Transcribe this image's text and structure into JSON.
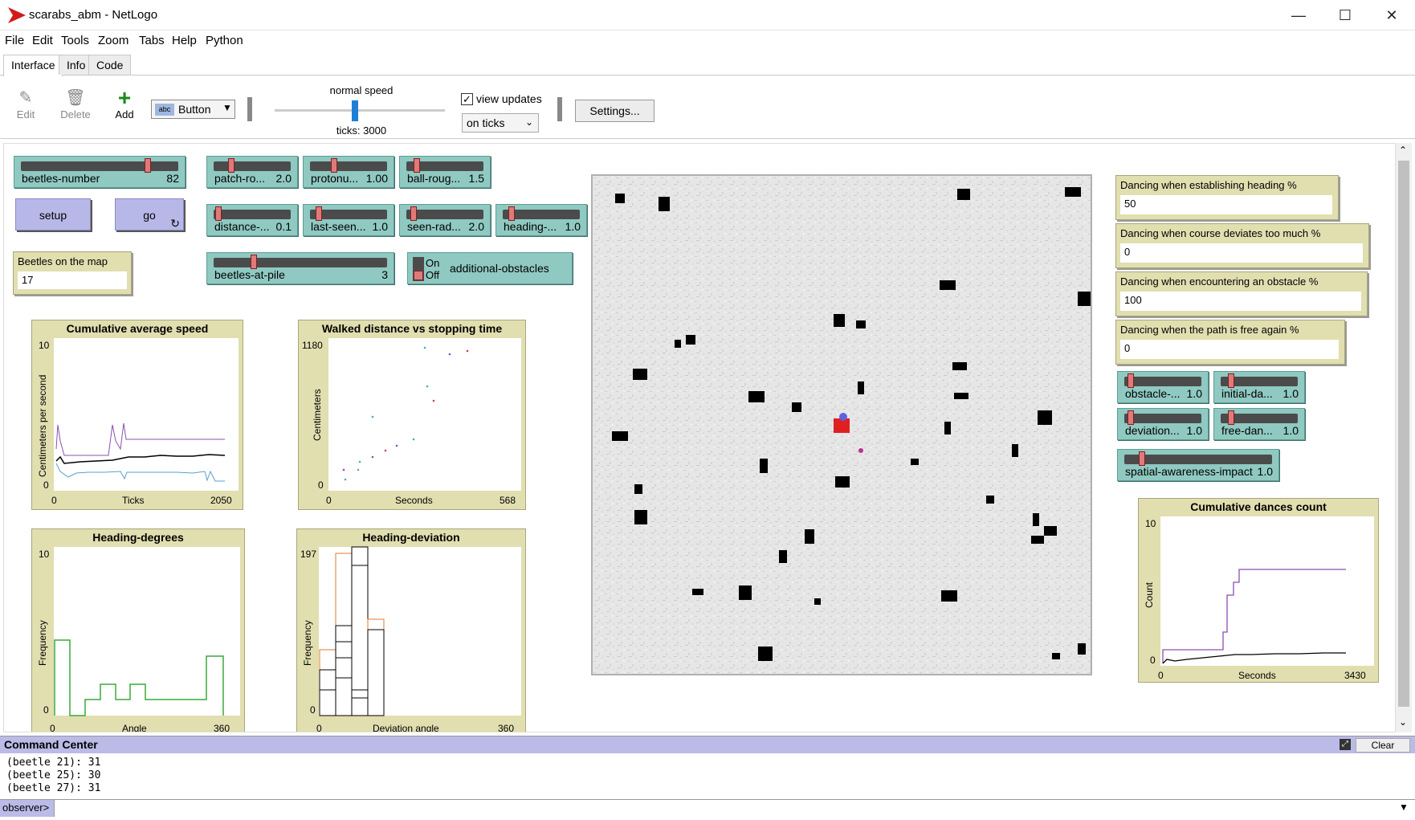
{
  "window": {
    "title": "scarabs_abm - NetLogo",
    "minimize": "—",
    "maximize": "☐",
    "close": "✕"
  },
  "menu": [
    "File",
    "Edit",
    "Tools",
    "Zoom",
    "Tabs",
    "Help",
    "Python"
  ],
  "tabs": [
    "Interface",
    "Info",
    "Code"
  ],
  "toolbar": {
    "edit": "Edit",
    "delete": "Delete",
    "add": "Add",
    "widget_type": "Button",
    "speed_label": "normal speed",
    "speed_fraction": 0.47,
    "ticks": "ticks: 3000",
    "view_updates_label": "view updates",
    "view_updates_checked": "✓",
    "update_mode": "on ticks",
    "settings": "Settings..."
  },
  "sliders": {
    "beetles_number": {
      "label": "beetles-number",
      "value": "82",
      "fraction": 0.82
    },
    "patch_ro": {
      "label": "patch-ro...",
      "value": "2.0",
      "fraction": 0.2
    },
    "protonu": {
      "label": "protonu...",
      "value": "1.00",
      "fraction": 0.3
    },
    "ball_roug": {
      "label": "ball-roug...",
      "value": "1.5",
      "fraction": 0.1
    },
    "distance": {
      "label": "distance-...",
      "value": "0.1",
      "fraction": 0.02
    },
    "last_seen": {
      "label": "last-seen...",
      "value": "1.0",
      "fraction": 0.08
    },
    "seen_rad": {
      "label": "seen-rad...",
      "value": "2.0",
      "fraction": 0.06
    },
    "heading": {
      "label": "heading-...",
      "value": "1.0",
      "fraction": 0.08
    },
    "beetles_at_pile": {
      "label": "beetles-at-pile",
      "value": "3",
      "fraction": 0.22
    },
    "obstacle": {
      "label": "obstacle-...",
      "value": "1.0",
      "fraction": 0.05
    },
    "initial_da": {
      "label": "initial-da...",
      "value": "1.0",
      "fraction": 0.1
    },
    "deviation": {
      "label": "deviation...",
      "value": "1.0",
      "fraction": 0.05
    },
    "free_dan": {
      "label": "free-dan...",
      "value": "1.0",
      "fraction": 0.1
    },
    "spatial": {
      "label": "spatial-awareness-impact",
      "value": "1.0",
      "fraction": 0.1
    }
  },
  "buttons": {
    "setup": "setup",
    "go": "go",
    "go_forever_icon": "↻"
  },
  "switch": {
    "on": "On",
    "off": "Off",
    "label": "additional-obstacles"
  },
  "monitors": {
    "beetles_on_map": {
      "label": "Beetles on the map",
      "value": "17"
    },
    "dancing_heading": {
      "label": "Dancing when establishing heading %",
      "value": "50"
    },
    "dancing_course": {
      "label": "Dancing when course deviates too much %",
      "value": "0"
    },
    "dancing_obstacle": {
      "label": "Dancing when encountering an obstacle %",
      "value": "100"
    },
    "dancing_free": {
      "label": "Dancing when the path is free again %",
      "value": "0"
    }
  },
  "plots": {
    "speed": {
      "title": "Cumulative average speed",
      "ylabel": "Centimeters per second",
      "xlabel": "Ticks",
      "ymax": "10",
      "ymin": "0",
      "xmin": "0",
      "xmax": "2050"
    },
    "walked": {
      "title": "Walked distance vs stopping time",
      "ylabel": "Centimeters",
      "xlabel": "Seconds",
      "ymax": "1180",
      "ymin": "0",
      "xmin": "0",
      "xmax": "568"
    },
    "heading_deg": {
      "title": "Heading-degrees",
      "ylabel": "Frequency",
      "xlabel": "Angle",
      "ymax": "10",
      "ymin": "0",
      "xmin": "0",
      "xmax": "360"
    },
    "heading_dev": {
      "title": "Heading-deviation",
      "ylabel": "Frequency",
      "xlabel": "Deviation angle",
      "ymax": "197",
      "ymin": "0",
      "xmin": "0",
      "xmax": "360"
    },
    "dances": {
      "title": "Cumulative dances count",
      "ylabel": "Count",
      "xlabel": "Seconds",
      "ymax": "10",
      "ymin": "0",
      "xmin": "0",
      "xmax": "3430"
    }
  },
  "command_center": {
    "title": "Command Center",
    "clear": "Clear",
    "expand_icon": "⤢",
    "output": [
      "(beetle 21): 31",
      "(beetle 25): 30",
      "(beetle 27): 31"
    ],
    "observer": "observer>",
    "input_value": ""
  }
}
